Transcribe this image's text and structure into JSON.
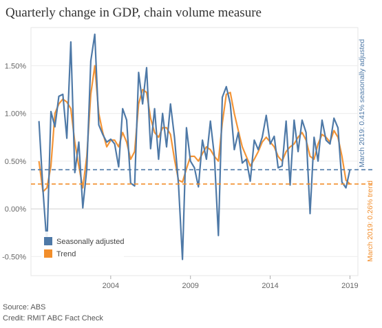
{
  "title": "Quarterly change in GDP, chain volume measure",
  "footer": {
    "source": "Source: ABS",
    "credit": "Credit: RMIT ABC Fact Check"
  },
  "chart_data": {
    "type": "line",
    "title": "Quarterly change in GDP, chain volume measure",
    "xlabel": "",
    "ylabel": "",
    "x_ticks": [
      "2004",
      "2009",
      "2014",
      "2019"
    ],
    "y_ticks": [
      "1.50%",
      "1.00%",
      "0.50%",
      "0.00%",
      "-0.50%"
    ],
    "ylim": [
      -0.7,
      1.9
    ],
    "xlim": [
      1999.0,
      2019.5
    ],
    "grid": "horizontal",
    "legend_position": "bottom-left",
    "colors": {
      "seasonally_adjusted": "#4e79a7",
      "trend": "#f28e2b"
    },
    "x": [
      1999.5,
      1999.75,
      2000.0,
      2000.25,
      2000.5,
      2000.75,
      2001.0,
      2001.25,
      2001.5,
      2001.75,
      2002.0,
      2002.25,
      2002.5,
      2002.75,
      2003.0,
      2003.25,
      2003.5,
      2003.75,
      2004.0,
      2004.25,
      2004.5,
      2004.75,
      2005.0,
      2005.25,
      2005.5,
      2005.75,
      2006.0,
      2006.25,
      2006.5,
      2006.75,
      2007.0,
      2007.25,
      2007.5,
      2007.75,
      2008.0,
      2008.25,
      2008.5,
      2008.75,
      2009.0,
      2009.25,
      2009.5,
      2009.75,
      2010.0,
      2010.25,
      2010.5,
      2010.75,
      2011.0,
      2011.25,
      2011.5,
      2011.75,
      2012.0,
      2012.25,
      2012.5,
      2012.75,
      2013.0,
      2013.25,
      2013.5,
      2013.75,
      2014.0,
      2014.25,
      2014.5,
      2014.75,
      2015.0,
      2015.25,
      2015.5,
      2015.75,
      2016.0,
      2016.25,
      2016.5,
      2016.75,
      2017.0,
      2017.25,
      2017.5,
      2017.75,
      2018.0,
      2018.25,
      2018.5,
      2018.75,
      2019.0
    ],
    "series": [
      {
        "name": "Seasonally adjusted",
        "values": [
          0.92,
          0.2,
          -0.38,
          1.02,
          0.86,
          1.18,
          1.2,
          0.74,
          1.75,
          0.38,
          0.7,
          0.01,
          0.42,
          1.55,
          1.83,
          0.88,
          0.78,
          0.7,
          0.73,
          0.68,
          0.44,
          1.05,
          0.93,
          0.27,
          0.24,
          1.43,
          1.1,
          1.48,
          0.63,
          1.05,
          0.52,
          1.0,
          0.65,
          1.1,
          0.75,
          0.26,
          -0.53,
          0.85,
          0.5,
          0.43,
          0.23,
          0.72,
          0.52,
          0.92,
          0.55,
          -0.28,
          1.17,
          1.28,
          1.1,
          0.62,
          0.8,
          0.48,
          0.52,
          0.29,
          0.72,
          0.62,
          0.75,
          0.98,
          0.68,
          0.76,
          0.43,
          0.45,
          0.92,
          0.25,
          0.93,
          0.6,
          0.93,
          0.8,
          -0.05,
          0.75,
          0.5,
          0.93,
          0.72,
          0.68,
          0.95,
          0.85,
          0.28,
          0.22,
          0.41
        ]
      },
      {
        "name": "Trend",
        "values": [
          0.5,
          0.18,
          0.22,
          0.45,
          1.0,
          1.1,
          1.15,
          1.12,
          1.05,
          0.7,
          0.45,
          0.22,
          0.55,
          1.2,
          1.5,
          1.0,
          0.8,
          0.65,
          0.72,
          0.72,
          0.65,
          0.8,
          0.7,
          0.52,
          0.6,
          1.1,
          1.25,
          1.22,
          0.95,
          0.8,
          0.75,
          0.85,
          0.85,
          0.78,
          0.52,
          0.3,
          0.28,
          0.42,
          0.55,
          0.55,
          0.5,
          0.58,
          0.65,
          0.62,
          0.55,
          0.5,
          0.9,
          1.2,
          1.22,
          1.0,
          0.82,
          0.65,
          0.55,
          0.45,
          0.52,
          0.6,
          0.7,
          0.75,
          0.7,
          0.65,
          0.55,
          0.5,
          0.6,
          0.65,
          0.68,
          0.75,
          0.8,
          0.72,
          0.55,
          0.52,
          0.68,
          0.78,
          0.75,
          0.7,
          0.82,
          0.75,
          0.55,
          0.3,
          0.26
        ]
      }
    ],
    "reference_lines": [
      {
        "value": 0.41,
        "label": "March 2019: 0.41% seasonally adjusted",
        "color": "#4e79a7"
      },
      {
        "value": 0.26,
        "label": "March 2019: 0.26% trend",
        "color": "#f28e2b"
      }
    ]
  }
}
